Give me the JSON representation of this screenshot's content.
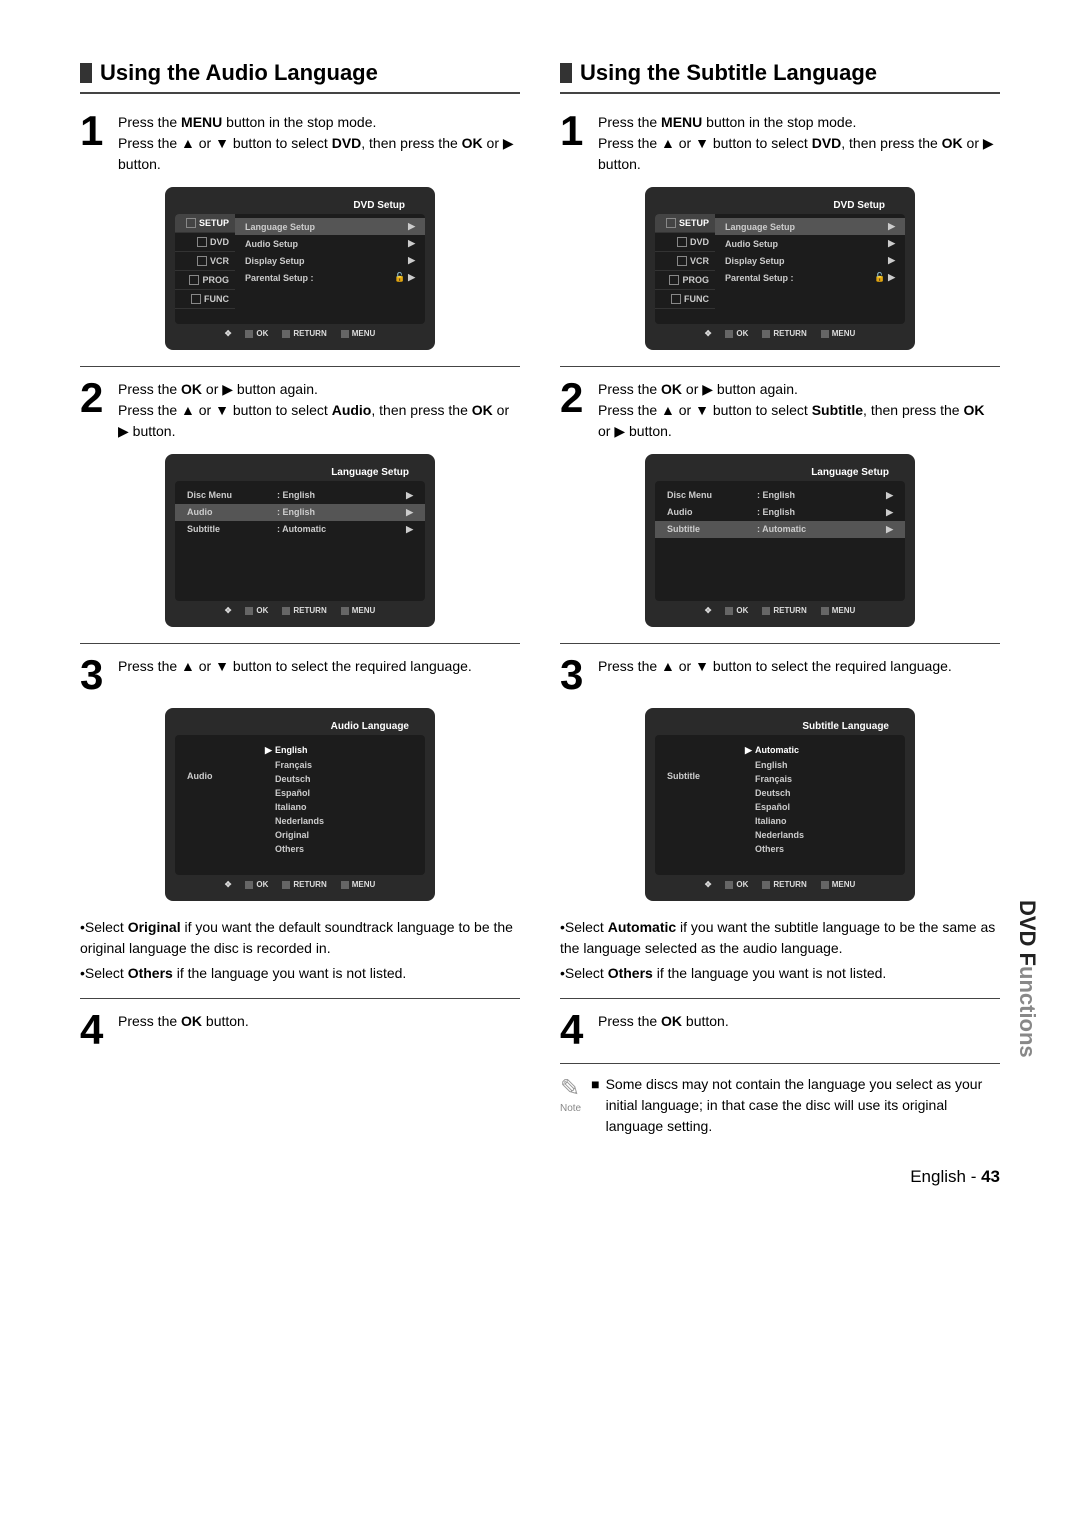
{
  "left": {
    "title": "Using the Audio Language",
    "step1": {
      "num": "1",
      "text_p1": "Press the ",
      "text_b1": "MENU",
      "text_p2": " button in the stop mode.",
      "text_p3": "Press the ▲ or ▼ button to select ",
      "text_b2": "DVD",
      "text_p4": ", then press the ",
      "text_b3": "OK",
      "text_p5": " or ▶ button."
    },
    "osd1": {
      "header": "DVD  Setup",
      "side": [
        "SETUP",
        "DVD",
        "VCR",
        "PROG",
        "FUNC"
      ],
      "rows": [
        {
          "label": "Language Setup",
          "sel": true,
          "arrow": "▶"
        },
        {
          "label": "Audio Setup",
          "sel": false,
          "arrow": "▶"
        },
        {
          "label": "Display Setup",
          "sel": false,
          "arrow": "▶"
        },
        {
          "label": "Parental Setup :",
          "sel": false,
          "arrow": "▶",
          "lock": true
        }
      ],
      "footer": [
        "OK",
        "RETURN",
        "MENU"
      ]
    },
    "step2": {
      "num": "2",
      "text_p1": "Press the ",
      "text_b1": "OK",
      "text_p2": " or ▶ button again.",
      "text_p3": "Press the ▲ or ▼ button to select ",
      "text_b2": "Audio",
      "text_p4": ", then press the ",
      "text_b3": "OK",
      "text_p5": " or ▶ button."
    },
    "osd2": {
      "header": "Language Setup",
      "rows": [
        {
          "c1": "Disc Menu",
          "c2": ": English",
          "sel": false
        },
        {
          "c1": "Audio",
          "c2": ": English",
          "sel": true
        },
        {
          "c1": "Subtitle",
          "c2": ": Automatic",
          "sel": false
        }
      ],
      "footer": [
        "OK",
        "RETURN",
        "MENU"
      ]
    },
    "step3": {
      "num": "3",
      "text": "Press the ▲ or ▼ button to select the required language."
    },
    "osd3": {
      "header": "Audio Language",
      "left_label": "Audio",
      "opts": [
        {
          "t": "English",
          "sel": true
        },
        {
          "t": "Français",
          "sel": false
        },
        {
          "t": "Deutsch",
          "sel": false
        },
        {
          "t": "Español",
          "sel": false
        },
        {
          "t": "Italiano",
          "sel": false
        },
        {
          "t": "Nederlands",
          "sel": false
        },
        {
          "t": "Original",
          "sel": false
        },
        {
          "t": "Others",
          "sel": false
        }
      ],
      "footer": [
        "OK",
        "RETURN",
        "MENU"
      ]
    },
    "notes": [
      {
        "pre": "•Select ",
        "b": "Original",
        "post": " if you want the default soundtrack language to be the original language the disc is recorded in."
      },
      {
        "pre": "•Select ",
        "b": "Others",
        "post": " if the language you want is not listed."
      }
    ],
    "step4": {
      "num": "4",
      "text_p1": "Press the ",
      "text_b1": "OK",
      "text_p2": " button."
    }
  },
  "right": {
    "title": "Using the Subtitle Language",
    "step1": {
      "num": "1",
      "text_p1": "Press the ",
      "text_b1": "MENU",
      "text_p2": " button in the stop mode.",
      "text_p3": "Press the ▲ or ▼ button to select ",
      "text_b2": "DVD",
      "text_p4": ", then press the ",
      "text_b3": "OK",
      "text_p5": " or ▶ button."
    },
    "osd1": {
      "header": "DVD  Setup",
      "side": [
        "SETUP",
        "DVD",
        "VCR",
        "PROG",
        "FUNC"
      ],
      "rows": [
        {
          "label": "Language Setup",
          "sel": true,
          "arrow": "▶"
        },
        {
          "label": "Audio Setup",
          "sel": false,
          "arrow": "▶"
        },
        {
          "label": "Display Setup",
          "sel": false,
          "arrow": "▶"
        },
        {
          "label": "Parental Setup :",
          "sel": false,
          "arrow": "▶",
          "lock": true
        }
      ],
      "footer": [
        "OK",
        "RETURN",
        "MENU"
      ]
    },
    "step2": {
      "num": "2",
      "text_p1": "Press the ",
      "text_b1": "OK",
      "text_p2": " or ▶ button again.",
      "text_p3": "Press the ▲ or ▼ button to select ",
      "text_b2": "Subtitle",
      "text_p4": ", then press the ",
      "text_b3": "OK",
      "text_p5": " or ▶ button."
    },
    "osd2": {
      "header": "Language Setup",
      "rows": [
        {
          "c1": "Disc Menu",
          "c2": ": English",
          "sel": false
        },
        {
          "c1": "Audio",
          "c2": ": English",
          "sel": false
        },
        {
          "c1": "Subtitle",
          "c2": ": Automatic",
          "sel": true
        }
      ],
      "footer": [
        "OK",
        "RETURN",
        "MENU"
      ]
    },
    "step3": {
      "num": "3",
      "text": "Press the ▲ or ▼ button to select the required language."
    },
    "osd3": {
      "header": "Subtitle Language",
      "left_label": "Subtitle",
      "opts": [
        {
          "t": "Automatic",
          "sel": true
        },
        {
          "t": "English",
          "sel": false
        },
        {
          "t": "Français",
          "sel": false
        },
        {
          "t": "Deutsch",
          "sel": false
        },
        {
          "t": "Español",
          "sel": false
        },
        {
          "t": "Italiano",
          "sel": false
        },
        {
          "t": "Nederlands",
          "sel": false
        },
        {
          "t": "Others",
          "sel": false
        }
      ],
      "footer": [
        "OK",
        "RETURN",
        "MENU"
      ]
    },
    "notes": [
      {
        "pre": "•Select ",
        "b": "Automatic",
        "post": " if you want the subtitle language to be the same as the language selected as the audio language."
      },
      {
        "pre": "•Select ",
        "b": "Others",
        "post": " if the language you want is not listed."
      }
    ],
    "step4": {
      "num": "4",
      "text_p1": "Press the ",
      "text_b1": "OK",
      "text_p2": " button."
    },
    "note": {
      "label": "Note",
      "text": "Some discs may not contain the language you select as your initial language; in that case the disc will use its original language setting."
    }
  },
  "sidetab": {
    "dark": "DVD F",
    "light": "unctions"
  },
  "footer": {
    "lang": "English",
    "sep": " - ",
    "page": "43"
  }
}
